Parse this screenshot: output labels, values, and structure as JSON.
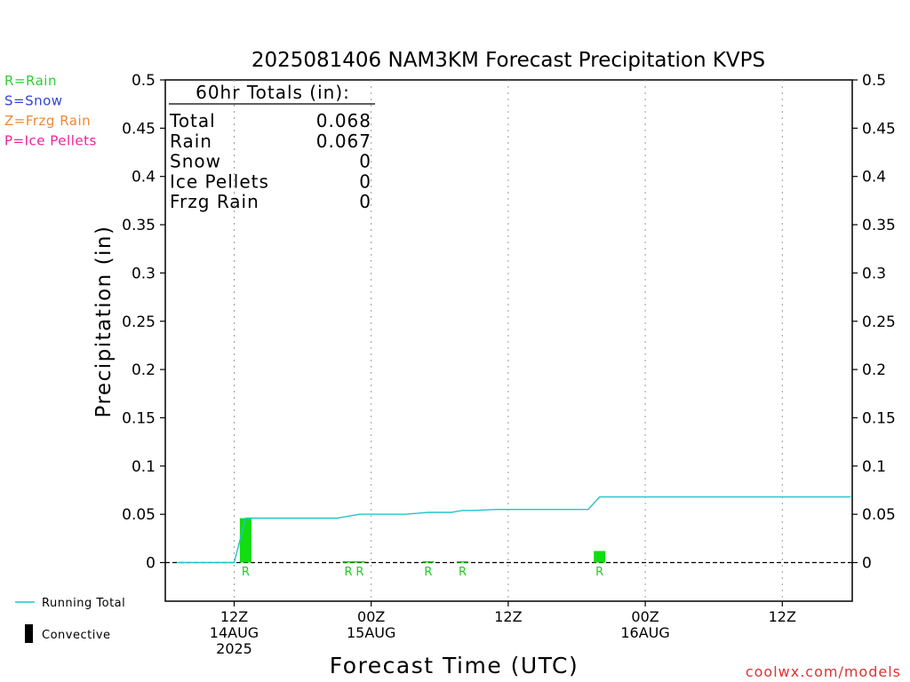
{
  "title": "2025081406 NAM3KM Forecast Precipitation KVPS",
  "watermark": "coolwx.com/models",
  "ptype_legend": [
    {
      "label": "R=Rain",
      "color": "#33cc33"
    },
    {
      "label": "S=Snow",
      "color": "#3344dd"
    },
    {
      "label": "Z=Frzg Rain",
      "color": "#ee8833"
    },
    {
      "label": "P=Ice Pellets",
      "color": "#ee2299"
    }
  ],
  "series_legend": [
    {
      "label": "Running Total",
      "color": "#22c3cc",
      "kind": "line"
    },
    {
      "label": "Convective",
      "color": "#000000",
      "kind": "bar"
    }
  ],
  "totals_box": {
    "header": "60hr Totals (in):",
    "rows": [
      {
        "label": "Total",
        "value": "0.068"
      },
      {
        "label": "Rain",
        "value": "0.067"
      },
      {
        "label": "Snow",
        "value": "0"
      },
      {
        "label": "Ice Pellets",
        "value": "0"
      },
      {
        "label": "Frzg Rain",
        "value": "0"
      }
    ]
  },
  "chart_data": {
    "type": "bar",
    "title": "2025081406 NAM3KM Forecast Precipitation KVPS",
    "xlabel": "Forecast Time (UTC)",
    "ylabel": "Precipitation (in)",
    "ylim": [
      -0.04,
      0.5
    ],
    "xlim": [
      6,
      66
    ],
    "yticks": [
      0,
      0.05,
      0.1,
      0.15,
      0.2,
      0.25,
      0.3,
      0.35,
      0.4,
      0.45,
      0.5
    ],
    "ytick_labels": [
      "0",
      "0.05",
      "0.1",
      "0.15",
      "0.2",
      "0.25",
      "0.3",
      "0.35",
      "0.4",
      "0.45",
      "0.5"
    ],
    "xticks": [
      {
        "hour": 12,
        "lines": [
          "12Z",
          "14AUG",
          "2025"
        ]
      },
      {
        "hour": 24,
        "lines": [
          "00Z",
          "15AUG"
        ]
      },
      {
        "hour": 36,
        "lines": [
          "12Z"
        ]
      },
      {
        "hour": 48,
        "lines": [
          "00Z",
          "16AUG"
        ]
      },
      {
        "hour": 60,
        "lines": [
          "12Z"
        ]
      }
    ],
    "grid": "x-dotted",
    "bars": [
      {
        "hour": 13,
        "value": 0.046,
        "ptype": "R"
      },
      {
        "hour": 22,
        "value": 0.001,
        "ptype": "R"
      },
      {
        "hour": 23,
        "value": 0.001,
        "ptype": "R"
      },
      {
        "hour": 29,
        "value": 0.001,
        "ptype": "R"
      },
      {
        "hour": 32,
        "value": 0.001,
        "ptype": "R"
      },
      {
        "hour": 44,
        "value": 0.012,
        "ptype": "R"
      }
    ],
    "running_total": {
      "name": "Running Total",
      "x": [
        7,
        12,
        13,
        21,
        22,
        23,
        24,
        27,
        28,
        29,
        31,
        32,
        33,
        35,
        43,
        44,
        45,
        66
      ],
      "y": [
        0,
        0,
        0.046,
        0.046,
        0.048,
        0.05,
        0.05,
        0.05,
        0.051,
        0.052,
        0.052,
        0.054,
        0.054,
        0.055,
        0.055,
        0.068,
        0.068,
        0.068
      ]
    }
  }
}
